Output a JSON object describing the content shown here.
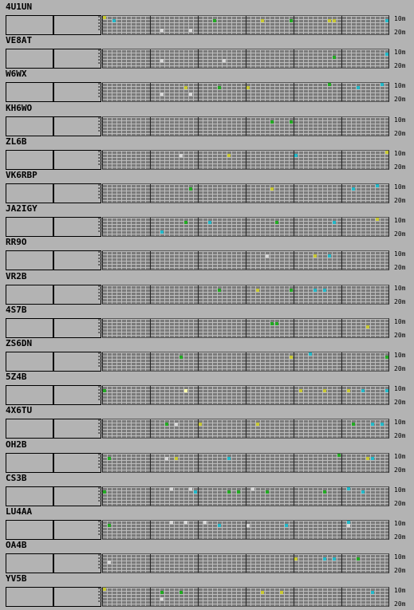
{
  "band_labels": {
    "top": "10m",
    "bottom": "20m"
  },
  "colors": {
    "yellow": "#c8c832",
    "green": "#22aa22",
    "cyan": "#22b8c8",
    "light": "#d8d8d8",
    "bright": "#ffffaa"
  },
  "beacons": [
    {
      "callsign": "4U1UN",
      "spots": [
        [
          "yellow",
          0,
          0
        ],
        [
          "cyan",
          2,
          1
        ],
        [
          "green",
          23,
          1
        ],
        [
          "yellow",
          33,
          1
        ],
        [
          "green",
          39,
          1
        ],
        [
          "yellow",
          47,
          1
        ],
        [
          "yellow",
          48,
          1
        ],
        [
          "cyan",
          59,
          1
        ],
        [
          "light",
          12,
          4
        ],
        [
          "light",
          18,
          4
        ]
      ]
    },
    {
      "callsign": "VE8AT",
      "spots": [
        [
          "cyan",
          59,
          1
        ],
        [
          "green",
          48,
          2
        ],
        [
          "light",
          12,
          3
        ],
        [
          "light",
          25,
          3
        ]
      ]
    },
    {
      "callsign": "W6WX",
      "spots": [
        [
          "green",
          47,
          0
        ],
        [
          "cyan",
          58,
          0
        ],
        [
          "yellow",
          17,
          1
        ],
        [
          "green",
          24,
          1
        ],
        [
          "yellow",
          30,
          1
        ],
        [
          "cyan",
          53,
          1
        ],
        [
          "light",
          12,
          3
        ],
        [
          "light",
          18,
          3
        ]
      ]
    },
    {
      "callsign": "KH6WO",
      "spots": [
        [
          "green",
          35,
          1
        ],
        [
          "green",
          39,
          1
        ]
      ]
    },
    {
      "callsign": "ZL6B",
      "spots": [
        [
          "yellow",
          59,
          0
        ],
        [
          "yellow",
          26,
          1
        ],
        [
          "cyan",
          40,
          1
        ],
        [
          "light",
          16,
          1
        ]
      ]
    },
    {
      "callsign": "VK6RBP",
      "spots": [
        [
          "cyan",
          57,
          0
        ],
        [
          "green",
          18,
          1
        ],
        [
          "yellow",
          35,
          1
        ],
        [
          "cyan",
          52,
          1
        ]
      ]
    },
    {
      "callsign": "JA2IGY",
      "spots": [
        [
          "yellow",
          57,
          0
        ],
        [
          "green",
          17,
          1
        ],
        [
          "cyan",
          22,
          1
        ],
        [
          "green",
          36,
          1
        ],
        [
          "cyan",
          48,
          1
        ],
        [
          "cyan",
          12,
          4
        ]
      ]
    },
    {
      "callsign": "RR9O",
      "spots": [
        [
          "light",
          34,
          1
        ],
        [
          "yellow",
          44,
          1
        ],
        [
          "cyan",
          47,
          1
        ]
      ]
    },
    {
      "callsign": "VR2B",
      "spots": [
        [
          "green",
          24,
          1
        ],
        [
          "yellow",
          32,
          1
        ],
        [
          "green",
          39,
          1
        ],
        [
          "cyan",
          44,
          1
        ],
        [
          "cyan",
          46,
          1
        ]
      ]
    },
    {
      "callsign": "4S7B",
      "spots": [
        [
          "green",
          35,
          1
        ],
        [
          "green",
          36,
          1
        ],
        [
          "yellow",
          55,
          2
        ]
      ]
    },
    {
      "callsign": "ZS6DN",
      "spots": [
        [
          "cyan",
          43,
          0
        ],
        [
          "green",
          16,
          1
        ],
        [
          "yellow",
          39,
          1
        ],
        [
          "green",
          59,
          1
        ]
      ]
    },
    {
      "callsign": "5Z4B",
      "spots": [
        [
          "green",
          0,
          1
        ],
        [
          "bright",
          17,
          1
        ],
        [
          "yellow",
          41,
          1
        ],
        [
          "yellow",
          46,
          1
        ],
        [
          "yellow",
          51,
          1
        ],
        [
          "cyan",
          54,
          1
        ],
        [
          "cyan",
          59,
          1
        ]
      ]
    },
    {
      "callsign": "4X6TU",
      "spots": [
        [
          "green",
          13,
          1
        ],
        [
          "light",
          15,
          1
        ],
        [
          "yellow",
          20,
          1
        ],
        [
          "yellow",
          32,
          1
        ],
        [
          "green",
          52,
          1
        ],
        [
          "cyan",
          56,
          1
        ],
        [
          "cyan",
          58,
          1
        ]
      ]
    },
    {
      "callsign": "OH2B",
      "spots": [
        [
          "green",
          49,
          0
        ],
        [
          "green",
          1,
          1
        ],
        [
          "light",
          13,
          1
        ],
        [
          "yellow",
          15,
          1
        ],
        [
          "cyan",
          26,
          1
        ],
        [
          "yellow",
          55,
          1
        ],
        [
          "cyan",
          56,
          1
        ]
      ]
    },
    {
      "callsign": "CS3B",
      "spots": [
        [
          "light",
          14,
          0
        ],
        [
          "light",
          18,
          0
        ],
        [
          "light",
          31,
          0
        ],
        [
          "cyan",
          51,
          0
        ],
        [
          "green",
          0,
          1
        ],
        [
          "cyan",
          19,
          1
        ],
        [
          "green",
          26,
          1
        ],
        [
          "green",
          28,
          1
        ],
        [
          "green",
          34,
          1
        ],
        [
          "green",
          46,
          1
        ],
        [
          "cyan",
          54,
          1
        ]
      ]
    },
    {
      "callsign": "LU4AA",
      "spots": [
        [
          "light",
          14,
          0
        ],
        [
          "light",
          17,
          0
        ],
        [
          "light",
          21,
          0
        ],
        [
          "cyan",
          51,
          0
        ],
        [
          "green",
          1,
          1
        ],
        [
          "cyan",
          24,
          1
        ],
        [
          "light",
          30,
          1
        ],
        [
          "cyan",
          38,
          1
        ],
        [
          "light",
          51,
          1
        ]
      ]
    },
    {
      "callsign": "OA4B",
      "spots": [
        [
          "yellow",
          40,
          1
        ],
        [
          "cyan",
          46,
          1
        ],
        [
          "cyan",
          48,
          1
        ],
        [
          "green",
          53,
          1
        ],
        [
          "light",
          1,
          2
        ]
      ]
    },
    {
      "callsign": "YV5B",
      "spots": [
        [
          "yellow",
          0,
          0
        ],
        [
          "green",
          12,
          1
        ],
        [
          "green",
          16,
          1
        ],
        [
          "yellow",
          33,
          1
        ],
        [
          "yellow",
          37,
          1
        ],
        [
          "cyan",
          56,
          1
        ],
        [
          "light",
          12,
          3
        ]
      ]
    }
  ]
}
